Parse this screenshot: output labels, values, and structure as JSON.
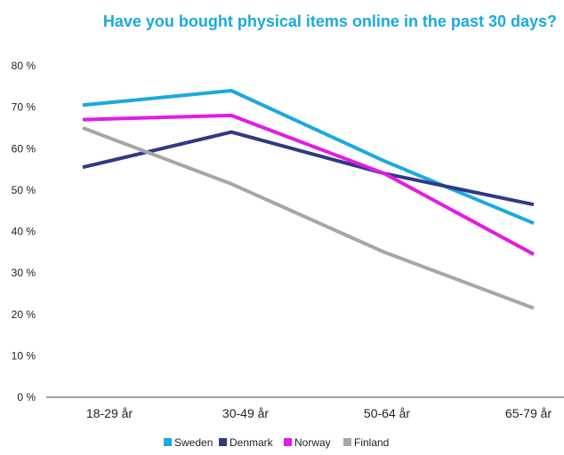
{
  "chart_data": {
    "type": "line",
    "title": "Have you bought physical items online in the past 30 days?",
    "categories": [
      "18-29 år",
      "30-49 år",
      "50-64 år",
      "65-79 år"
    ],
    "y_ticks": [
      "0 %",
      "10 %",
      "20 %",
      "30 %",
      "40 %",
      "50 %",
      "60 %",
      "70 %",
      "80 %"
    ],
    "ylim": [
      0,
      80
    ],
    "grid": false,
    "legend_position": "bottom",
    "series": [
      {
        "name": "Sweden",
        "color": "#1aa9e1",
        "values": [
          70.5,
          74,
          57,
          42
        ]
      },
      {
        "name": "Denmark",
        "color": "#2e3a85",
        "values": [
          55.5,
          64,
          54,
          46.5
        ]
      },
      {
        "name": "Norway",
        "color": "#e31be3",
        "values": [
          67,
          68,
          54,
          34.5
        ]
      },
      {
        "name": "Finland",
        "color": "#a6a6a6",
        "values": [
          65,
          51.5,
          35,
          21.5
        ]
      }
    ]
  }
}
